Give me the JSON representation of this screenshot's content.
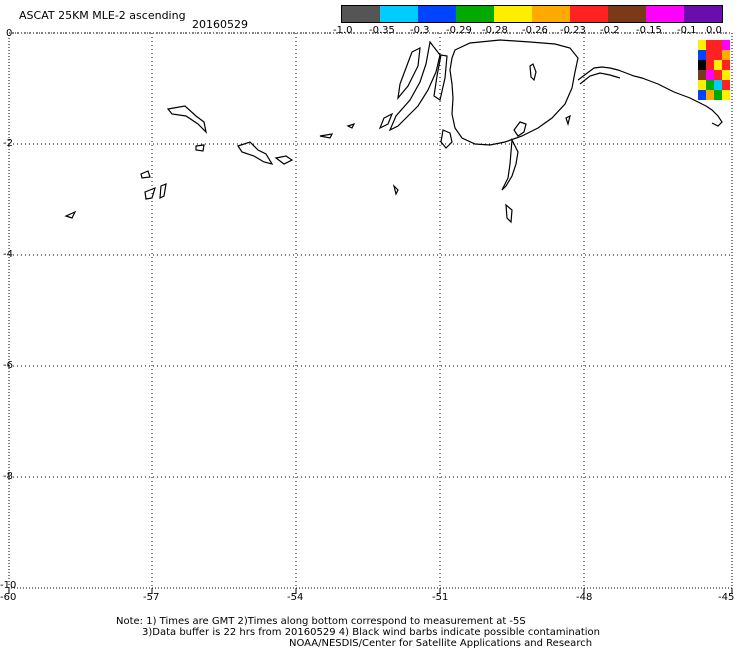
{
  "header": {
    "title": "ASCAT 25KM MLE-2 ascending",
    "date": "20160529"
  },
  "colorbar": {
    "colors": [
      "#555555",
      "#00ccff",
      "#0044ff",
      "#00aa00",
      "#ffee00",
      "#ffaa00",
      "#ff2222",
      "#7a3a1a",
      "#ff00ff",
      "#6a0dad"
    ],
    "labels": [
      "-1.0",
      "-0.35",
      "-0.3",
      "-0.29",
      "-0.28",
      "-0.26",
      "-0.23",
      "-0.2",
      "-0.15",
      "-0.1",
      "0.0"
    ]
  },
  "axes": {
    "y_ticks": [
      "0",
      "-2",
      "-4",
      "-6",
      "-8",
      "-10"
    ],
    "x_ticks": [
      "-60",
      "-57",
      "-54",
      "-51",
      "-48",
      "-45"
    ]
  },
  "notes": {
    "line1": "Note: 1) Times are GMT 2)Times along bottom correspond to measurement at -5S",
    "line2": "3)Data buffer is 22 hrs from 20160529 4) Black wind barbs indicate possible contamination",
    "line3": "NOAA/NESDIS/Center for Satellite Applications and Research"
  },
  "data_patch": {
    "colors": [
      [
        "#ffee00",
        "#ff2222",
        "#ff2222",
        "#ff00ff"
      ],
      [
        "#0044ff",
        "#ff2222",
        "#ff2222",
        "#ffaa00"
      ],
      [
        "#000000",
        "#ff2222",
        "#ffee00",
        "#ff2222"
      ],
      [
        "#7a3a1a",
        "#ff00ff",
        "#ff2222",
        "#ffee00"
      ],
      [
        "#ffee00",
        "#00aa00",
        "#00ccff",
        "#ff2222"
      ],
      [
        "#0044ff",
        "#ffaa00",
        "#00aa00",
        "#ffee00"
      ]
    ]
  }
}
